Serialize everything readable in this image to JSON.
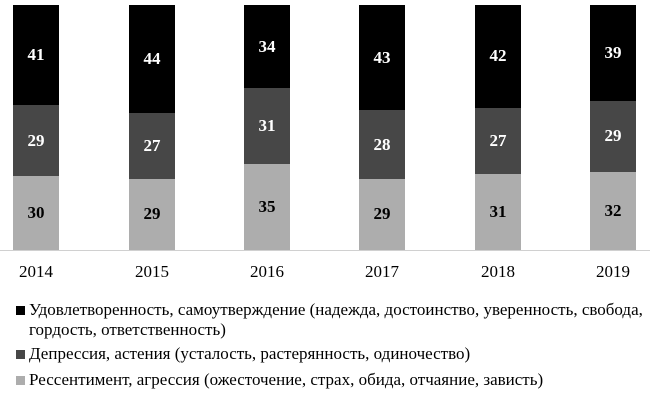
{
  "chart_data": {
    "type": "bar",
    "stacked": true,
    "percent": true,
    "title": "",
    "xlabel": "",
    "ylabel": "",
    "ylim": [
      0,
      100
    ],
    "grid": false,
    "legend_position": "bottom",
    "categories": [
      "2014",
      "2015",
      "2016",
      "2017",
      "2018",
      "2019"
    ],
    "series": [
      {
        "name": "Удовлетворенность, самоутверждение (надежда, достоинство, уверенность, свобода, гордость, ответственность)",
        "color": "#000000",
        "values": [
          41,
          44,
          34,
          43,
          42,
          39
        ]
      },
      {
        "name": "Депрессия, астения (усталость, растерянность, одиночество)",
        "color": "#474747",
        "values": [
          29,
          27,
          31,
          28,
          27,
          29
        ]
      },
      {
        "name": "Рессентимент, агрессия (ожесточение, страх, обида, отчаяние, зависть)",
        "color": "#adadad",
        "values": [
          30,
          29,
          35,
          29,
          31,
          32
        ]
      }
    ]
  },
  "legend": {
    "items": [
      {
        "label": "Удовлетворенность, самоутверждение (надежда, достоинство, уверенность, свобода, гордость, ответственность)",
        "color": "#000000"
      },
      {
        "label": "Депрессия, астения (усталость, растерянность, одиночество)",
        "color": "#474747"
      },
      {
        "label": "Рессентимент, агрессия (ожесточение, страх, обида, отчаяние, зависть)",
        "color": "#adadad"
      }
    ]
  }
}
